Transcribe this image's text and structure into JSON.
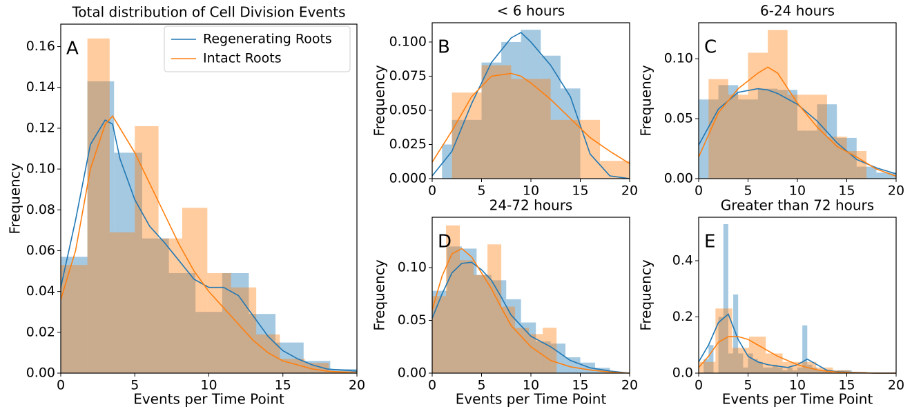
{
  "chart_data": [
    {
      "type": "histogram",
      "title": "Total distribution of Cell Division Events",
      "panel_label": "A",
      "xlabel": "Events per Time Point",
      "ylabel": "Frequency",
      "xlim": [
        0,
        20
      ],
      "ylim": [
        0,
        0.171
      ],
      "xticks": [
        0,
        5,
        10,
        15,
        20
      ],
      "yticks": [
        {
          "value": 0,
          "label": "0.00"
        },
        {
          "value": 0.02,
          "label": "0.02"
        },
        {
          "value": 0.04,
          "label": "0.04"
        },
        {
          "value": 0.06,
          "label": "0.06"
        },
        {
          "value": 0.08,
          "label": "0.08"
        },
        {
          "value": 0.1,
          "label": "0.10"
        },
        {
          "value": 0.12,
          "label": "0.12"
        },
        {
          "value": 0.14,
          "label": "0.14"
        },
        {
          "value": 0.16,
          "label": "0.16"
        }
      ],
      "legend": "upper right",
      "series": [
        {
          "name": "Regenerating Roots",
          "color": "#1f77b4",
          "bins": [
            0,
            1.8,
            3.6,
            5.5,
            7.3,
            9.1,
            10.9,
            12.7,
            14.5,
            16.4,
            18.2,
            20
          ],
          "values": [
            0.057,
            0.143,
            0.108,
            0.066,
            0.049,
            0.03,
            0.049,
            0.029,
            0.015,
            0.006,
            0.002
          ],
          "kde": {
            "x": [
              0,
              1,
              2,
              3,
              3.5,
              4,
              5,
              6,
              7,
              8,
              9,
              10,
              11,
              12,
              13,
              14,
              15,
              16,
              17,
              18,
              20
            ],
            "y": [
              0.042,
              0.075,
              0.112,
              0.124,
              0.122,
              0.105,
              0.085,
              0.072,
              0.064,
              0.055,
              0.046,
              0.042,
              0.042,
              0.038,
              0.028,
              0.018,
              0.011,
              0.007,
              0.004,
              0.002,
              0.001
            ]
          }
        },
        {
          "name": "Intact Roots",
          "color": "#ff7f0e",
          "bins": [
            0,
            1.8,
            3.3,
            5.0,
            6.6,
            8.2,
            9.9,
            11.5,
            13.2,
            14.8,
            16.5,
            18.1,
            20
          ],
          "values": [
            0.053,
            0.164,
            0.069,
            0.121,
            0.066,
            0.081,
            0.049,
            0.042,
            0.019,
            0.007,
            0.005,
            0.001
          ],
          "kde": {
            "x": [
              0,
              1,
              2,
              3,
              3.5,
              4,
              5,
              6,
              7,
              8,
              9,
              10,
              11,
              12,
              13,
              14,
              15,
              16,
              17,
              18,
              20
            ],
            "y": [
              0.036,
              0.06,
              0.1,
              0.122,
              0.126,
              0.12,
              0.108,
              0.093,
              0.078,
              0.063,
              0.05,
              0.04,
              0.032,
              0.024,
              0.016,
              0.01,
              0.006,
              0.004,
              0.002,
              0.001,
              0
            ]
          }
        }
      ]
    },
    {
      "type": "histogram",
      "title": "< 6 hours",
      "panel_label": "B",
      "ylabel": "Frequency",
      "xlim": [
        0,
        20
      ],
      "ylim": [
        0,
        0.1141
      ],
      "xticks": [
        0,
        5,
        10,
        15,
        20
      ],
      "yticks": [
        {
          "value": 0,
          "label": "0.000"
        },
        {
          "value": 0.025,
          "label": "0.025"
        },
        {
          "value": 0.05,
          "label": "0.050"
        },
        {
          "value": 0.075,
          "label": "0.075"
        },
        {
          "value": 0.1,
          "label": "0.100"
        }
      ],
      "series": [
        {
          "name": "Regenerating Roots",
          "color": "#1f77b4",
          "bins": [
            1,
            2,
            5,
            7,
            9,
            11,
            13,
            15
          ],
          "values": [
            0.025,
            0.043,
            0.085,
            0.1,
            0.109,
            0.09,
            0.066
          ],
          "kde": {
            "x": [
              0,
              2,
              4,
              6,
              8,
              9,
              10,
              12,
              14,
              16,
              18,
              20
            ],
            "y": [
              0.002,
              0.02,
              0.055,
              0.085,
              0.103,
              0.107,
              0.1,
              0.083,
              0.06,
              0.018,
              0.002,
              0
            ]
          }
        },
        {
          "name": "Intact Roots",
          "color": "#ff7f0e",
          "bins": [
            2,
            5,
            8,
            12,
            17,
            20
          ],
          "values": [
            0.063,
            0.083,
            0.073,
            0.043,
            0.013
          ],
          "kde": {
            "x": [
              0,
              2,
              4,
              6,
              8,
              9,
              10,
              12,
              14,
              16,
              18,
              20
            ],
            "y": [
              0.012,
              0.035,
              0.06,
              0.075,
              0.077,
              0.075,
              0.07,
              0.058,
              0.044,
              0.03,
              0.02,
              0.011
            ]
          }
        }
      ]
    },
    {
      "type": "histogram",
      "title": "6-24 hours",
      "panel_label": "C",
      "ylabel": "Frequency",
      "xlim": [
        0,
        20
      ],
      "ylim": [
        0,
        0.13
      ],
      "xticks": [
        0,
        5,
        10,
        15,
        20
      ],
      "yticks": [
        {
          "value": 0,
          "label": "0.00"
        },
        {
          "value": 0.05,
          "label": "0.05"
        },
        {
          "value": 0.1,
          "label": "0.10"
        }
      ],
      "series": [
        {
          "name": "Regenerating Roots",
          "color": "#1f77b4",
          "bins": [
            0,
            2,
            4,
            6,
            8,
            10,
            12,
            14,
            16,
            18,
            20
          ],
          "values": [
            0.066,
            0.078,
            0.066,
            0.075,
            0.074,
            0.04,
            0.062,
            0.034,
            0.01,
            0.005
          ],
          "kde": {
            "x": [
              0,
              2,
              4,
              6,
              7,
              8,
              10,
              12,
              14,
              16,
              18,
              20
            ],
            "y": [
              0.028,
              0.058,
              0.072,
              0.075,
              0.074,
              0.071,
              0.062,
              0.048,
              0.03,
              0.016,
              0.009,
              0.004
            ]
          }
        },
        {
          "name": "Intact Roots",
          "color": "#ff7f0e",
          "bins": [
            1,
            3,
            5,
            7,
            9,
            11,
            13,
            15,
            17
          ],
          "values": [
            0.083,
            0.07,
            0.105,
            0.124,
            0.07,
            0.07,
            0.035,
            0.023
          ],
          "kde": {
            "x": [
              0,
              2,
              4,
              6,
              7,
              8,
              10,
              12,
              14,
              16,
              18,
              20
            ],
            "y": [
              0.018,
              0.055,
              0.075,
              0.088,
              0.093,
              0.088,
              0.063,
              0.043,
              0.027,
              0.018,
              0.008,
              0.002
            ]
          }
        }
      ]
    },
    {
      "type": "histogram",
      "title": "24-72 hours",
      "panel_label": "D",
      "xlabel": "Events per Time Point",
      "ylabel": "Frequency",
      "xlim": [
        0,
        20
      ],
      "ylim": [
        0,
        0.1477
      ],
      "xticks": [
        0,
        5,
        10,
        15,
        20
      ],
      "yticks": [
        {
          "value": 0,
          "label": "0.00"
        },
        {
          "value": 0.05,
          "label": "0.05"
        },
        {
          "value": 0.1,
          "label": "0.10"
        }
      ],
      "series": [
        {
          "name": "Regenerating Roots",
          "color": "#1f77b4",
          "bins": [
            0,
            1.5,
            3,
            4.5,
            6,
            7.5,
            9,
            10.5,
            12,
            13.5,
            15,
            16.5,
            18
          ],
          "values": [
            0.078,
            0.12,
            0.118,
            0.093,
            0.088,
            0.07,
            0.048,
            0.03,
            0.028,
            0.015,
            0.01,
            0.005
          ],
          "kde": {
            "x": [
              0,
              1,
              2,
              3,
              4,
              5,
              6,
              7,
              8,
              10,
              12,
              14,
              16,
              18,
              20
            ],
            "y": [
              0.052,
              0.075,
              0.095,
              0.104,
              0.105,
              0.098,
              0.088,
              0.072,
              0.055,
              0.035,
              0.025,
              0.012,
              0.005,
              0.002,
              0
            ]
          }
        },
        {
          "name": "Intact Roots",
          "color": "#ff7f0e",
          "bins": [
            0,
            1.4,
            2.8,
            4.2,
            5.6,
            7,
            8.4,
            9.8,
            11.2,
            12.6
          ],
          "values": [
            0.073,
            0.14,
            0.107,
            0.093,
            0.122,
            0.063,
            0.043,
            0.037,
            0.043
          ],
          "kde": {
            "x": [
              0,
              1,
              2,
              3,
              4,
              5,
              6,
              7,
              8,
              10,
              12,
              14,
              16,
              18,
              20
            ],
            "y": [
              0.06,
              0.092,
              0.113,
              0.118,
              0.11,
              0.095,
              0.08,
              0.062,
              0.045,
              0.025,
              0.012,
              0.006,
              0.003,
              0.001,
              0
            ]
          }
        }
      ]
    },
    {
      "type": "histogram",
      "title": "Greater than 72 hours",
      "panel_label": "E",
      "xlabel": "Events per Time Point",
      "ylabel": "Frequency",
      "xlim": [
        0,
        20
      ],
      "ylim": [
        0,
        0.5546
      ],
      "xticks": [
        0,
        5,
        10,
        15,
        20
      ],
      "yticks": [
        {
          "value": 0,
          "label": "0.0"
        },
        {
          "value": 0.2,
          "label": "0.2"
        },
        {
          "value": 0.4,
          "label": "0.4"
        }
      ],
      "series": [
        {
          "name": "Regenerating Roots",
          "color": "#1f77b4",
          "bins": [
            0.5,
            1,
            1.5,
            2,
            2.5,
            3,
            3.5,
            4,
            4.5,
            5,
            5.5,
            6,
            6.5,
            7,
            7.5,
            8,
            8.5,
            9,
            9.5,
            10,
            10.5,
            11,
            11.5,
            12,
            12.5,
            13,
            13.5,
            14,
            14.5,
            15,
            15.5,
            16,
            16.5
          ],
          "values": [
            0.05,
            0.1,
            0,
            0.2,
            0.53,
            0.07,
            0.28,
            0.07,
            0.02,
            0.07,
            0.05,
            0.04,
            0.02,
            0.02,
            0.03,
            0.02,
            0.01,
            0.02,
            0.01,
            0.02,
            0.17,
            0.03,
            0.02,
            0.01,
            0.01,
            0.01,
            0,
            0.01,
            0.01,
            0.01,
            0,
            0
          ],
          "kde": {
            "x": [
              0,
              1,
              2,
              3,
              4,
              5,
              6,
              7,
              8,
              9,
              10,
              11,
              12,
              13,
              14,
              16,
              18,
              20
            ],
            "y": [
              0.04,
              0.1,
              0.18,
              0.21,
              0.12,
              0.06,
              0.04,
              0.03,
              0.025,
              0.02,
              0.03,
              0.05,
              0.03,
              0.01,
              0.005,
              0.002,
              0,
              0
            ]
          }
        },
        {
          "name": "Intact Roots",
          "color": "#ff7f0e",
          "bins": [
            0,
            1.7,
            3.4,
            5.1,
            6.8,
            8.5,
            10.2,
            11.9,
            13.6,
            15.3,
            17
          ],
          "values": [
            0.04,
            0.23,
            0.09,
            0.13,
            0.07,
            0.04,
            0.04,
            0.02,
            0.01,
            0.005
          ],
          "kde": {
            "x": [
              0,
              1,
              2,
              3,
              4,
              5,
              6,
              7,
              8,
              9,
              10,
              11,
              12,
              13,
              14,
              16,
              18,
              20
            ],
            "y": [
              0.02,
              0.06,
              0.11,
              0.13,
              0.13,
              0.12,
              0.1,
              0.08,
              0.06,
              0.045,
              0.03,
              0.02,
              0.012,
              0.007,
              0.004,
              0.001,
              0,
              0
            ]
          }
        }
      ]
    }
  ]
}
